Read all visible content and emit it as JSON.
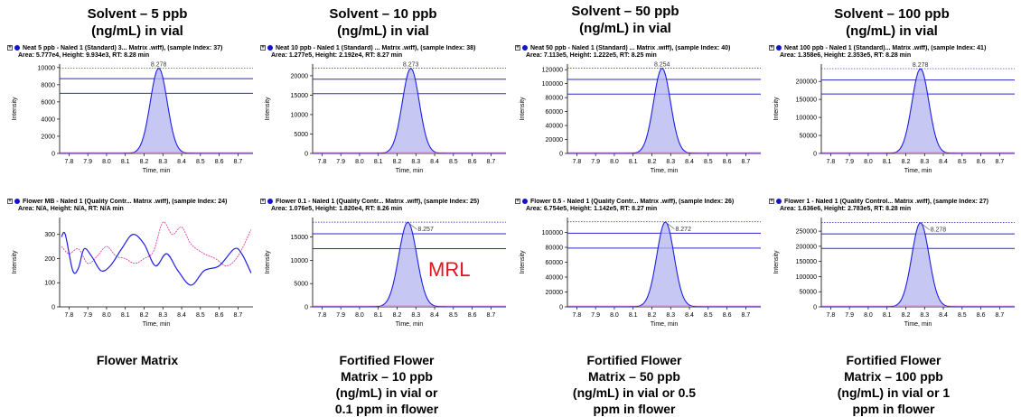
{
  "column_titles": [
    {
      "line1": "Solvent – 5 ppb",
      "line2": "(ng/mL) in vial"
    },
    {
      "line1": "Solvent – 10 ppb",
      "line2": "(ng/mL) in vial"
    },
    {
      "line1": "Solvent – 50 ppb",
      "line2": "(ng/mL) in vial"
    },
    {
      "line1": "Solvent – 100 ppb",
      "line2": "(ng/mL) in vial"
    }
  ],
  "column_footers": [
    {
      "lines": [
        "Flower Matrix"
      ]
    },
    {
      "lines": [
        "Fortified Flower",
        "Matrix – 10 ppb",
        "(ng/mL) in vial or",
        "0.1 ppm in flower"
      ]
    },
    {
      "lines": [
        "Fortified Flower",
        "Matrix – 50 ppb",
        "(ng/mL) in vial or 0.5",
        "ppm in flower"
      ]
    },
    {
      "lines": [
        "Fortified Flower",
        "Matrix – 100 ppb",
        "(ng/mL) in vial or 1",
        "ppm in flower"
      ]
    }
  ],
  "mrl_label": "MRL",
  "colors": {
    "trace": "#1e1ee6",
    "fill": "#b4b4f0",
    "secondary": "#e040a0",
    "line": "#2828c8",
    "mrl": "#e0141e"
  },
  "chart_data": [
    {
      "type": "line",
      "row": 0,
      "col": 0,
      "header1": "Neat 5 ppb - Naled 1 (Standard) 3... Matrix .wiff), (sample Index: 37)",
      "header2": "Area: 5.777e4, Height: 9.934e3, RT: 8.28 min",
      "xlabel": "Time, min",
      "ylabel": "Intensity",
      "xlim": [
        7.75,
        8.78
      ],
      "ylim": [
        0,
        10400
      ],
      "yticks": [
        0,
        2000,
        4000,
        6000,
        8000,
        10000
      ],
      "xticks": [
        7.8,
        7.9,
        8.0,
        8.1,
        8.2,
        8.3,
        8.4,
        8.5,
        8.6,
        8.7
      ],
      "peak": {
        "rt": 8.278,
        "height": 9934,
        "width": 0.045,
        "label": "8.278",
        "label_offset": false
      },
      "hlines": [
        8700,
        7000
      ]
    },
    {
      "type": "line",
      "row": 0,
      "col": 1,
      "header1": "Neat 10 ppb - Naled 1 (Standard) ... Matrix .wiff), (sample Index: 38)",
      "header2": "Area: 1.277e5, Height: 2.192e4, RT: 8.27 min",
      "xlabel": "Time, min",
      "ylabel": "Intensity",
      "xlim": [
        7.75,
        8.78
      ],
      "ylim": [
        0,
        23000
      ],
      "yticks": [
        0,
        5000,
        10000,
        15000,
        20000
      ],
      "xticks": [
        7.8,
        7.9,
        8.0,
        8.1,
        8.2,
        8.3,
        8.4,
        8.5,
        8.6,
        8.7
      ],
      "peak": {
        "rt": 8.273,
        "height": 21920,
        "width": 0.045,
        "label": "8.273",
        "label_offset": false
      },
      "hlines": [
        19100,
        15400
      ]
    },
    {
      "type": "line",
      "row": 0,
      "col": 2,
      "header1": "Neat 50 ppb - Naled 1 (Standard) ... Matrix .wiff), (sample Index: 40)",
      "header2": "Area: 7.113e5, Height: 1.222e5, RT: 8.25 min",
      "xlabel": "Time, min",
      "ylabel": "Intensity",
      "xlim": [
        7.75,
        8.78
      ],
      "ylim": [
        0,
        128000
      ],
      "yticks": [
        0,
        20000,
        40000,
        60000,
        80000,
        100000,
        120000
      ],
      "xticks": [
        7.8,
        7.9,
        8.0,
        8.1,
        8.2,
        8.3,
        8.4,
        8.5,
        8.6,
        8.7
      ],
      "peak": {
        "rt": 8.254,
        "height": 122200,
        "width": 0.045,
        "label": "8.254",
        "label_offset": false
      },
      "hlines": [
        106000,
        85000
      ]
    },
    {
      "type": "line",
      "row": 0,
      "col": 3,
      "header1": "Neat 100 ppb - Naled 1 (Standard)... Matrix .wiff), (sample Index: 41)",
      "header2": "Area: 1.358e6, Height: 2.353e5, RT: 8.28 min",
      "xlabel": "Time, min",
      "ylabel": "Intensity",
      "xlim": [
        7.75,
        8.78
      ],
      "ylim": [
        0,
        248000
      ],
      "yticks": [
        0,
        50000,
        100000,
        150000,
        200000
      ],
      "xticks": [
        7.8,
        7.9,
        8.0,
        8.1,
        8.2,
        8.3,
        8.4,
        8.5,
        8.6,
        8.7
      ],
      "peak": {
        "rt": 8.278,
        "height": 235300,
        "width": 0.045,
        "label": "8.278",
        "label_offset": false
      },
      "hlines": [
        204000,
        165000
      ]
    },
    {
      "type": "line",
      "row": 1,
      "col": 0,
      "header1": "Flower MB - Naled 1 (Quality Contr... Matrix .wiff), (sample Index: 24)",
      "header2": "Area: N/A, Height: N/A, RT: N/A min",
      "xlabel": "Time, min",
      "ylabel": "Intensity",
      "xlim": [
        7.75,
        8.78
      ],
      "ylim": [
        0,
        370
      ],
      "yticks": [
        0,
        100,
        200,
        300
      ],
      "xticks": [
        7.8,
        7.9,
        8.0,
        8.1,
        8.2,
        8.3,
        8.4,
        8.5,
        8.6,
        8.7
      ],
      "noise": {
        "blue": [
          [
            7.76,
            290
          ],
          [
            7.78,
            300
          ],
          [
            7.82,
            150
          ],
          [
            7.85,
            160
          ],
          [
            7.88,
            240
          ],
          [
            7.92,
            210
          ],
          [
            7.97,
            150
          ],
          [
            8.02,
            170
          ],
          [
            8.08,
            240
          ],
          [
            8.14,
            300
          ],
          [
            8.2,
            260
          ],
          [
            8.26,
            170
          ],
          [
            8.32,
            220
          ],
          [
            8.38,
            150
          ],
          [
            8.45,
            90
          ],
          [
            8.52,
            150
          ],
          [
            8.6,
            170
          ],
          [
            8.68,
            240
          ],
          [
            8.72,
            220
          ],
          [
            8.77,
            140
          ]
        ],
        "pink": [
          [
            7.76,
            250
          ],
          [
            7.8,
            220
          ],
          [
            7.85,
            240
          ],
          [
            7.9,
            180
          ],
          [
            7.95,
            210
          ],
          [
            8.0,
            250
          ],
          [
            8.05,
            210
          ],
          [
            8.1,
            200
          ],
          [
            8.15,
            180
          ],
          [
            8.2,
            200
          ],
          [
            8.25,
            230
          ],
          [
            8.3,
            350
          ],
          [
            8.35,
            300
          ],
          [
            8.4,
            330
          ],
          [
            8.45,
            260
          ],
          [
            8.52,
            220
          ],
          [
            8.58,
            200
          ],
          [
            8.64,
            170
          ],
          [
            8.7,
            210
          ],
          [
            8.77,
            320
          ]
        ]
      },
      "hlines": []
    },
    {
      "type": "line",
      "row": 1,
      "col": 1,
      "header1": "Flower 0.1 - Naled 1 (Quality Contr... Matrix .wiff), (sample Index: 25)",
      "header2": "Area: 1.076e5, Height: 1.820e4, RT: 8.26 min",
      "xlabel": "Time, min",
      "ylabel": "Intensity",
      "xlim": [
        7.75,
        8.78
      ],
      "ylim": [
        0,
        19200
      ],
      "yticks": [
        0,
        5000,
        10000,
        15000
      ],
      "xticks": [
        7.8,
        7.9,
        8.0,
        8.1,
        8.2,
        8.3,
        8.4,
        8.5,
        8.6,
        8.7
      ],
      "peak": {
        "rt": 8.257,
        "height": 18200,
        "width": 0.048,
        "label": "8.257",
        "label_offset": true
      },
      "hlines": [
        15700,
        12500
      ]
    },
    {
      "type": "line",
      "row": 1,
      "col": 2,
      "header1": "Flower 0.5 - Naled 1 (Quality Contr... Matrix .wiff), (sample Index: 26)",
      "header2": "Area: 6.754e5, Height: 1.142e5, RT: 8.27 min",
      "xlabel": "Time, min",
      "ylabel": "Intensity",
      "xlim": [
        7.75,
        8.78
      ],
      "ylim": [
        0,
        120000
      ],
      "yticks": [
        0,
        20000,
        40000,
        60000,
        80000,
        100000
      ],
      "xticks": [
        7.8,
        7.9,
        8.0,
        8.1,
        8.2,
        8.3,
        8.4,
        8.5,
        8.6,
        8.7
      ],
      "peak": {
        "rt": 8.272,
        "height": 114200,
        "width": 0.046,
        "label": "8.272",
        "label_offset": true
      },
      "hlines": [
        99000,
        79000
      ]
    },
    {
      "type": "line",
      "row": 1,
      "col": 3,
      "header1": "Flower 1 - Naled 1 (Quality Control... Matrix .wiff), (sample Index: 27)",
      "header2": "Area: 1.636e6, Height: 2.783e5, RT: 8.28 min",
      "xlabel": "Time, min",
      "ylabel": "Intensity",
      "xlim": [
        7.75,
        8.78
      ],
      "ylim": [
        0,
        295000
      ],
      "yticks": [
        0,
        50000,
        100000,
        150000,
        200000,
        250000
      ],
      "xticks": [
        7.8,
        7.9,
        8.0,
        8.1,
        8.2,
        8.3,
        8.4,
        8.5,
        8.6,
        8.7
      ],
      "peak": {
        "rt": 8.278,
        "height": 278300,
        "width": 0.046,
        "label": "8.278",
        "label_offset": true
      },
      "hlines": [
        241000,
        193000
      ]
    }
  ]
}
